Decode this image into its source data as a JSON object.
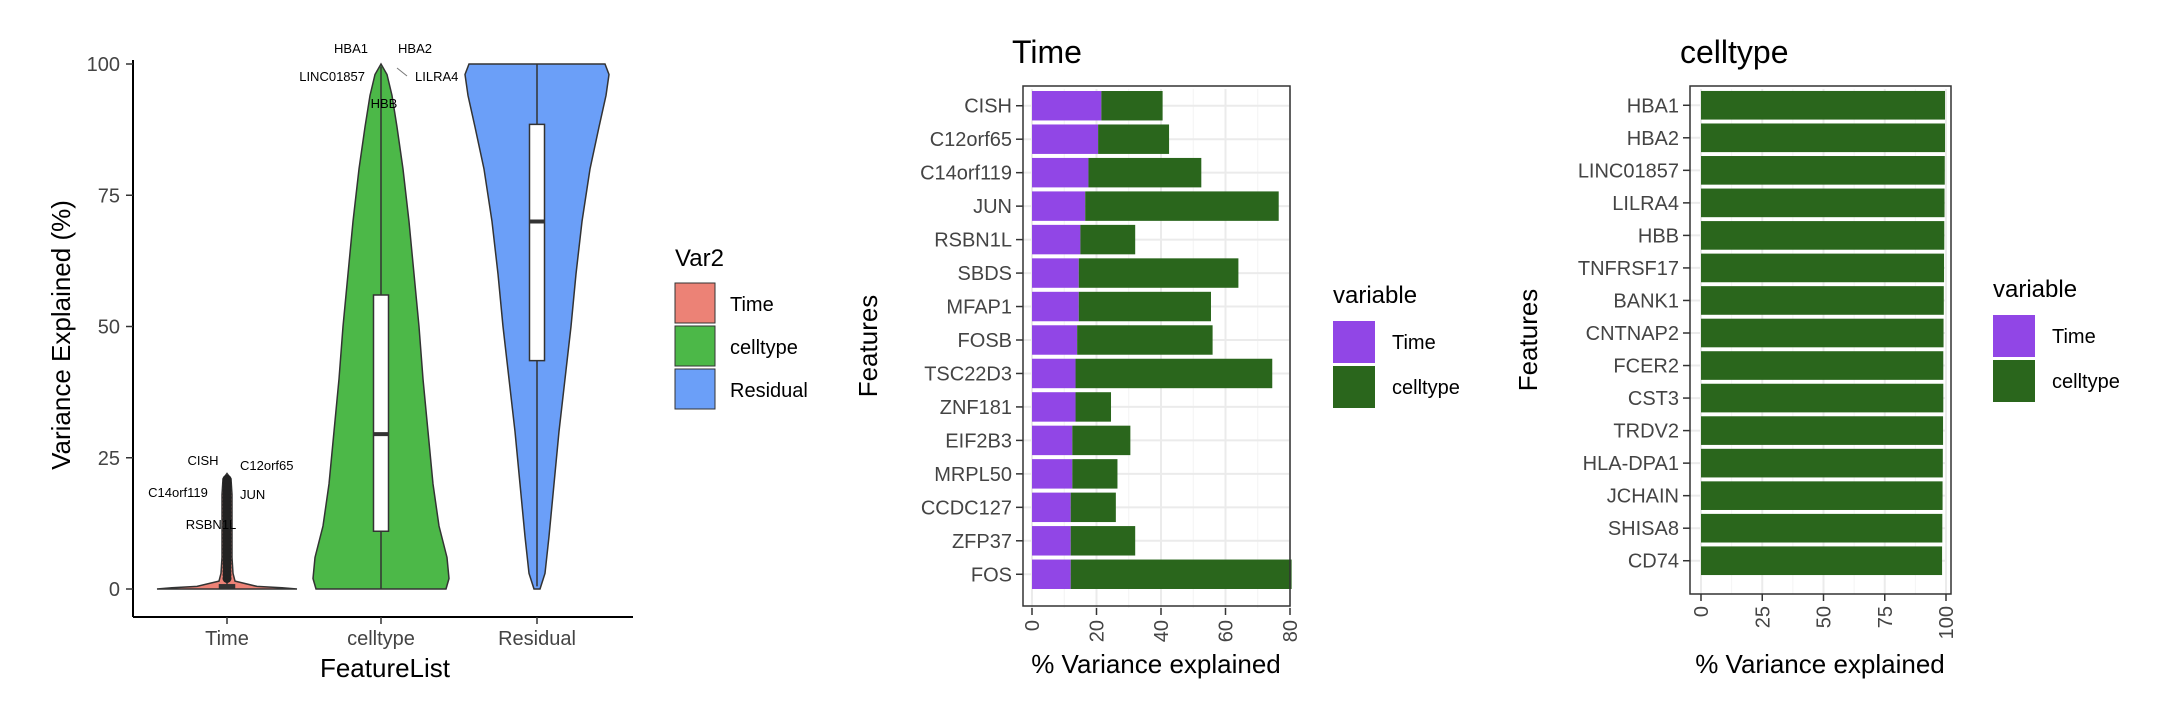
{
  "chart_data": [
    {
      "type": "violin",
      "title": "",
      "xlabel": "FeatureList",
      "ylabel": "Variance Explained (%)",
      "categories": [
        "Time",
        "celltype",
        "Residual"
      ],
      "ylim": [
        0,
        100
      ],
      "yticks": [
        0,
        25,
        50,
        75,
        100
      ],
      "legend": {
        "title": "Var2",
        "position": "right",
        "items": [
          {
            "label": "Time",
            "color": "#EC8276"
          },
          {
            "label": "celltype",
            "color": "#4CB848"
          },
          {
            "label": "Residual",
            "color": "#6B9FF8"
          }
        ]
      },
      "boxes": [
        {
          "category": "Time",
          "min": 0,
          "q1": 0.2,
          "median": 0.4,
          "q3": 0.8,
          "max": 1.8
        },
        {
          "category": "celltype",
          "min": 0,
          "q1": 11,
          "median": 29.5,
          "q3": 56,
          "max": 99.5
        },
        {
          "category": "Residual",
          "min": 0.5,
          "q1": 43.5,
          "median": 70,
          "q3": 88.5,
          "max": 100
        }
      ],
      "annotations": [
        {
          "text": "HBA1",
          "category": "celltype",
          "y": 100
        },
        {
          "text": "HBA2",
          "category": "celltype",
          "y": 100
        },
        {
          "text": "LINC01857",
          "category": "celltype",
          "y": 99.8
        },
        {
          "text": "LILRA4",
          "category": "celltype",
          "y": 99.5
        },
        {
          "text": "HBB",
          "category": "celltype",
          "y": 98.7
        },
        {
          "text": "CISH",
          "category": "Time",
          "y": 21.5
        },
        {
          "text": "C12orf65",
          "category": "Time",
          "y": 20.5
        },
        {
          "text": "C14orf119",
          "category": "Time",
          "y": 17.5
        },
        {
          "text": "JUN",
          "category": "Time",
          "y": 16.5
        },
        {
          "text": "RSBN1L",
          "category": "Time",
          "y": 15
        }
      ],
      "grid": false
    },
    {
      "type": "bar",
      "orientation": "horizontal",
      "stacked": true,
      "title": "Time",
      "xlabel": "% Variance explained",
      "ylabel": "Features",
      "xlim": [
        0,
        80
      ],
      "xticks": [
        0,
        20,
        40,
        60,
        80
      ],
      "categories": [
        "CISH",
        "C12orf65",
        "C14orf119",
        "JUN",
        "RSBN1L",
        "SBDS",
        "MFAP1",
        "FOSB",
        "TSC22D3",
        "ZNF181",
        "EIF2B3",
        "MRPL50",
        "CCDC127",
        "ZFP37",
        "FOS"
      ],
      "series": [
        {
          "name": "Time",
          "color": "#9146E6",
          "values": [
            21.5,
            20.5,
            17.5,
            16.5,
            15,
            14.5,
            14.5,
            14,
            13.5,
            13.5,
            12.5,
            12.5,
            12,
            12,
            12
          ]
        },
        {
          "name": "celltype",
          "color": "#2A661C",
          "values": [
            19,
            22,
            35,
            60,
            17,
            49.5,
            41,
            42,
            61,
            11,
            18,
            14,
            14,
            20,
            68.5
          ]
        }
      ],
      "legend": {
        "title": "variable",
        "position": "right"
      },
      "grid": true
    },
    {
      "type": "bar",
      "orientation": "horizontal",
      "stacked": true,
      "title": "celltype",
      "xlabel": "% Variance explained",
      "ylabel": "Features",
      "xlim": [
        0,
        100
      ],
      "xticks": [
        0,
        25,
        50,
        75,
        100
      ],
      "categories": [
        "HBA1",
        "HBA2",
        "LINC01857",
        "LILRA4",
        "HBB",
        "TNFRSF17",
        "BANK1",
        "CNTNAP2",
        "FCER2",
        "CST3",
        "TRDV2",
        "HLA-DPA1",
        "JCHAIN",
        "SHISA8",
        "CD74"
      ],
      "series": [
        {
          "name": "Time",
          "color": "#9146E6",
          "values": [
            0,
            0,
            0,
            0,
            0,
            0,
            0,
            0,
            0,
            0,
            0,
            0,
            0,
            0,
            0
          ]
        },
        {
          "name": "celltype",
          "color": "#2A661C",
          "values": [
            99.6,
            99.6,
            99.5,
            99.4,
            99.3,
            99.2,
            99.1,
            99.0,
            98.9,
            98.9,
            98.8,
            98.7,
            98.6,
            98.5,
            98.4
          ]
        }
      ],
      "legend": {
        "title": "variable",
        "position": "right"
      },
      "grid": true
    }
  ]
}
